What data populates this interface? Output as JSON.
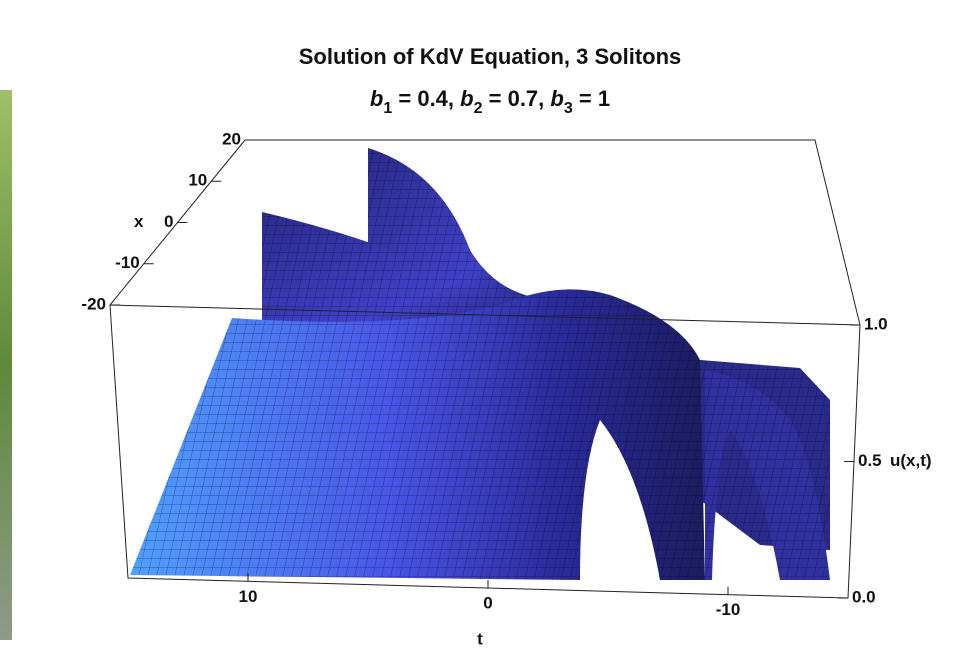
{
  "chart_data": {
    "type": "surface3d",
    "title": "Solution of KdV Equation, 3 Solitons",
    "subtitle": [
      {
        "text": "b",
        "style": "italic"
      },
      {
        "text": "1",
        "style": "sub"
      },
      {
        "text": " = 0.4, "
      },
      {
        "text": "b",
        "style": "italic"
      },
      {
        "text": "2",
        "style": "sub"
      },
      {
        "text": " = 0.7, "
      },
      {
        "text": "b",
        "style": "italic"
      },
      {
        "text": "3",
        "style": "sub"
      },
      {
        "text": " = 1"
      }
    ],
    "xlabel": "t",
    "ylabel": "x",
    "zlabel": "u(x,t)",
    "xlim": [
      15,
      -15
    ],
    "xticks": [
      10,
      0,
      -10
    ],
    "ylim": [
      -20,
      20
    ],
    "yticks": [
      20,
      10,
      0,
      -10,
      -20
    ],
    "zlim": [
      0,
      1
    ],
    "zticks": [
      {
        "value": 1,
        "label": "1.0"
      },
      {
        "value": 0.5,
        "label": "0.5"
      },
      {
        "value": 0,
        "label": "0.0"
      }
    ],
    "color": "#3a3ad8"
  }
}
